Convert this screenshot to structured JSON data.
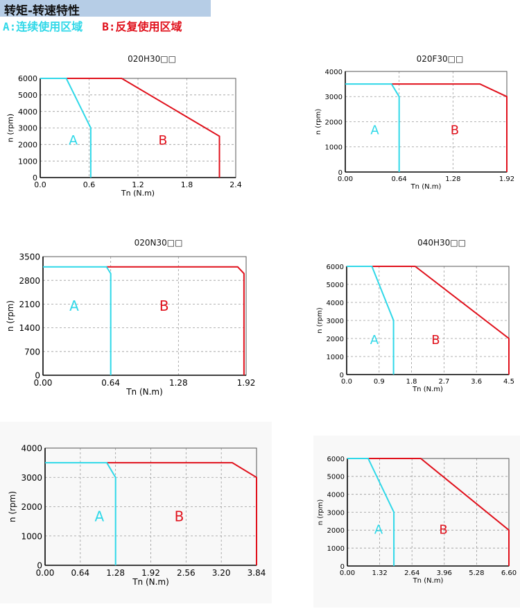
{
  "page": {
    "title": "转矩-转速特性",
    "legend_a": "A:连续使用区域",
    "legend_b": "B:反复使用区域",
    "colors": {
      "header_bg": "#b6cde6",
      "region_a": "#2fd8e8",
      "region_b": "#e0101b"
    }
  },
  "chart_data": [
    {
      "type": "line",
      "title": "020H30□□",
      "xlabel": "Tn (N.m)",
      "ylabel": "n (rpm)",
      "xticks": [
        "0.0",
        "0.6",
        "1.2",
        "1.8",
        "2.4"
      ],
      "yticks": [
        "0",
        "1000",
        "2000",
        "3000",
        "4000",
        "5000",
        "6000"
      ],
      "xlim": [
        0,
        2.4
      ],
      "ylim": [
        0,
        6000
      ],
      "grid": true,
      "label_a": "A",
      "label_b": "B",
      "series": [
        {
          "id": "A",
          "color": "#2fd8e8",
          "x": [
            0,
            0.32,
            0.62,
            0.62
          ],
          "y": [
            6000,
            6000,
            3000,
            0
          ]
        },
        {
          "id": "B",
          "color": "#e0101b",
          "x": [
            0.32,
            1.0,
            2.2,
            2.2
          ],
          "y": [
            6000,
            6000,
            2500,
            0
          ]
        }
      ]
    },
    {
      "type": "line",
      "title": "020F30□□",
      "xlabel": "Tn (N.m)",
      "ylabel": "n (rpm)",
      "xticks": [
        "0.00",
        "0.64",
        "1.28",
        "1.92"
      ],
      "yticks": [
        "0",
        "1000",
        "2000",
        "3000",
        "4000"
      ],
      "xlim": [
        0,
        1.92
      ],
      "ylim": [
        0,
        4000
      ],
      "grid": true,
      "label_a": "A",
      "label_b": "B",
      "series": [
        {
          "id": "A",
          "color": "#2fd8e8",
          "x": [
            0,
            0.55,
            0.64,
            0.64
          ],
          "y": [
            3500,
            3500,
            3000,
            0
          ]
        },
        {
          "id": "B",
          "color": "#e0101b",
          "x": [
            0.55,
            1.6,
            1.92,
            1.92
          ],
          "y": [
            3500,
            3500,
            3000,
            0
          ]
        }
      ]
    },
    {
      "type": "line",
      "title": "020N30□□",
      "xlabel": "Tn (N.m)",
      "ylabel": "n (rpm)",
      "xticks": [
        "0.00",
        "0.64",
        "1.28",
        "1.92"
      ],
      "yticks": [
        "0",
        "700",
        "1400",
        "2100",
        "2800",
        "3500"
      ],
      "xlim": [
        0,
        1.92
      ],
      "ylim": [
        0,
        3500
      ],
      "grid": true,
      "label_a": "A",
      "label_b": "B",
      "series": [
        {
          "id": "A",
          "color": "#2fd8e8",
          "x": [
            0,
            0.6,
            0.64,
            0.64
          ],
          "y": [
            3200,
            3200,
            3000,
            0
          ]
        },
        {
          "id": "B",
          "color": "#e0101b",
          "x": [
            0.6,
            1.84,
            1.9,
            1.9
          ],
          "y": [
            3200,
            3200,
            3000,
            0
          ]
        }
      ]
    },
    {
      "type": "line",
      "title": "040H30□□",
      "xlabel": "Tn (N.m)",
      "ylabel": "n (rpm)",
      "xticks": [
        "0.0",
        "0.9",
        "1.8",
        "2.7",
        "3.6",
        "4.5"
      ],
      "yticks": [
        "0",
        "1000",
        "2000",
        "3000",
        "4000",
        "5000",
        "6000"
      ],
      "xlim": [
        0,
        4.5
      ],
      "ylim": [
        0,
        6000
      ],
      "grid": true,
      "label_a": "A",
      "label_b": "B",
      "series": [
        {
          "id": "A",
          "color": "#2fd8e8",
          "x": [
            0,
            0.7,
            1.3,
            1.3
          ],
          "y": [
            6000,
            6000,
            3000,
            0
          ]
        },
        {
          "id": "B",
          "color": "#e0101b",
          "x": [
            0.7,
            1.9,
            4.5,
            4.5
          ],
          "y": [
            6000,
            6000,
            2000,
            0
          ]
        }
      ]
    },
    {
      "type": "line",
      "title": "",
      "xlabel": "Tn (N.m)",
      "ylabel": "n (rpm)",
      "xticks": [
        "0.00",
        "0.64",
        "1.28",
        "1.92",
        "2.56",
        "3.20",
        "3.84"
      ],
      "yticks": [
        "0",
        "1000",
        "2000",
        "3000",
        "4000"
      ],
      "xlim": [
        0,
        3.84
      ],
      "ylim": [
        0,
        4000
      ],
      "grid": true,
      "label_a": "A",
      "label_b": "B",
      "series": [
        {
          "id": "A",
          "color": "#2fd8e8",
          "x": [
            0,
            1.12,
            1.28,
            1.28
          ],
          "y": [
            3500,
            3500,
            3000,
            0
          ]
        },
        {
          "id": "B",
          "color": "#e0101b",
          "x": [
            1.12,
            3.4,
            3.84,
            3.84
          ],
          "y": [
            3500,
            3500,
            3000,
            0
          ]
        }
      ]
    },
    {
      "type": "line",
      "title": "",
      "xlabel": "Tn (N.m)",
      "ylabel": "n (rpm)",
      "xticks": [
        "0.00",
        "1.32",
        "2.64",
        "3.96",
        "5.28",
        "6.60"
      ],
      "yticks": [
        "0",
        "1000",
        "2000",
        "3000",
        "4000",
        "5000",
        "6000"
      ],
      "xlim": [
        0,
        6.6
      ],
      "ylim": [
        0,
        6000
      ],
      "grid": true,
      "label_a": "A",
      "label_b": "B",
      "series": [
        {
          "id": "A",
          "color": "#2fd8e8",
          "x": [
            0,
            0.85,
            1.9,
            1.9
          ],
          "y": [
            6000,
            6000,
            3000,
            0
          ]
        },
        {
          "id": "B",
          "color": "#e0101b",
          "x": [
            0.85,
            3.0,
            6.6,
            6.6
          ],
          "y": [
            6000,
            6000,
            2000,
            0
          ]
        }
      ]
    }
  ]
}
